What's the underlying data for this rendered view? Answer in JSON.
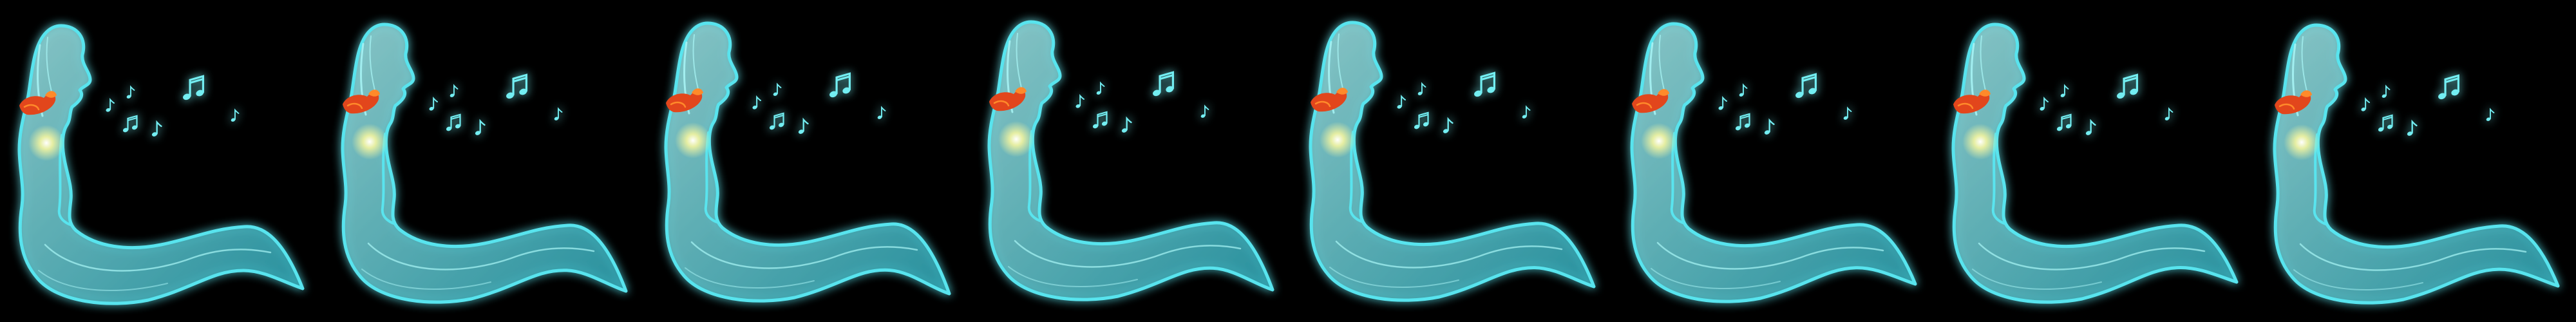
{
  "sprite_sheet": {
    "frame_count": 8,
    "background": "#000000",
    "colors": {
      "body_glow": "#59e4ee",
      "body_fill": "#2fb3c4",
      "body_core": "#a9f6f7",
      "heart_glow": "#f3f4a0",
      "bird": "#e2461c",
      "bird_light": "#ff8a2a",
      "notes": "#73eef2"
    },
    "icons": [
      "ghost-singer",
      "bird-icon",
      "music-note-icon",
      "glowing-heart-icon"
    ],
    "frames": [
      {
        "index": 1
      },
      {
        "index": 2
      },
      {
        "index": 3
      },
      {
        "index": 4
      },
      {
        "index": 5
      },
      {
        "index": 6
      },
      {
        "index": 7
      },
      {
        "index": 8
      }
    ]
  }
}
